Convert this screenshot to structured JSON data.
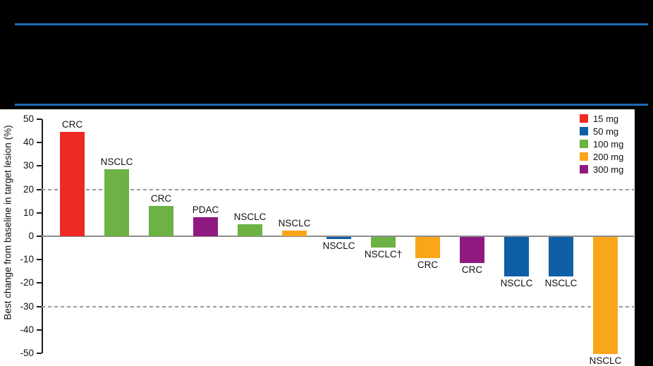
{
  "header": {
    "rule_color": "#1C6BB5"
  },
  "chart_data": {
    "type": "bar",
    "variant": "waterfall",
    "title": "",
    "xlabel": "",
    "ylabel": "Best change from baseline in target lesion (%)",
    "ylim": [
      -50,
      50
    ],
    "yticks": [
      50,
      40,
      30,
      20,
      10,
      0,
      -10,
      -20,
      -30,
      -40,
      -50
    ],
    "grid": false,
    "reference_lines": [
      20,
      -30
    ],
    "reference_line_style": "dashed",
    "legend": {
      "position": "top-right",
      "items": [
        {
          "label": "15 mg",
          "color": "#EE2A24"
        },
        {
          "label": "50 mg",
          "color": "#0E5FA5"
        },
        {
          "label": "100 mg",
          "color": "#6CB244"
        },
        {
          "label": "200 mg",
          "color": "#FAA61A"
        },
        {
          "label": "300 mg",
          "color": "#8E1A80"
        }
      ]
    },
    "bars": [
      {
        "label": "CRC",
        "dose": "15 mg",
        "value": 44.5
      },
      {
        "label": "NSCLC",
        "dose": "100 mg",
        "value": 28.5
      },
      {
        "label": "CRC",
        "dose": "100 mg",
        "value": 13
      },
      {
        "label": "PDAC",
        "dose": "300 mg",
        "value": 8
      },
      {
        "label": "NSCLC",
        "dose": "100 mg",
        "value": 5
      },
      {
        "label": "NSCLC",
        "dose": "200 mg",
        "value": 2.5
      },
      {
        "label": "NSCLC",
        "dose": "50 mg",
        "value": -1
      },
      {
        "label": "NSCLC†",
        "dose": "100 mg",
        "value": -4.5
      },
      {
        "label": "CRC",
        "dose": "200 mg",
        "value": -9
      },
      {
        "label": "CRC",
        "dose": "300 mg",
        "value": -11
      },
      {
        "label": "NSCLC",
        "dose": "50 mg",
        "value": -17
      },
      {
        "label": "NSCLC",
        "dose": "50 mg",
        "value": -17
      },
      {
        "label": "NSCLC",
        "dose": "200 mg",
        "value": -50
      }
    ]
  }
}
